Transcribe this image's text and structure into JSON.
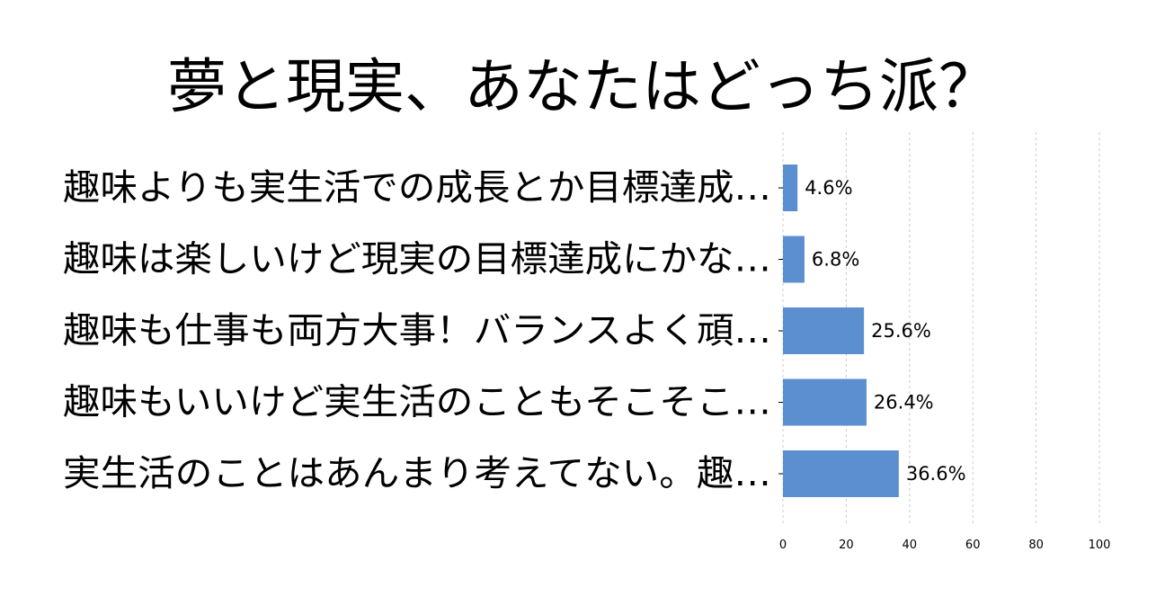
{
  "chart_data": {
    "type": "bar",
    "orientation": "horizontal",
    "title": "夢と現実、あなたはどっち派？",
    "categories": [
      "趣味よりも実生活での成長とか目標達成…",
      "趣味は楽しいけど現実の目標達成にかな…",
      "趣味も仕事も両方大事！バランスよく頑…",
      "趣味もいいけど実生活のこともそこそこ…",
      "実生活のことはあんまり考えてない。趣…"
    ],
    "values": [
      4.6,
      6.8,
      25.6,
      26.4,
      36.6
    ],
    "value_labels": [
      "4.6%",
      "6.8%",
      "25.6%",
      "26.4%",
      "36.6%"
    ],
    "xlim": [
      0,
      100
    ],
    "x_ticks": [
      0,
      20,
      40,
      60,
      80,
      100
    ],
    "x_tick_labels": [
      "0",
      "20",
      "40",
      "60",
      "80",
      "100"
    ],
    "xlabel": "",
    "ylabel": "",
    "grid": true,
    "legend": "none",
    "bar_color": "#5b8fd0"
  }
}
